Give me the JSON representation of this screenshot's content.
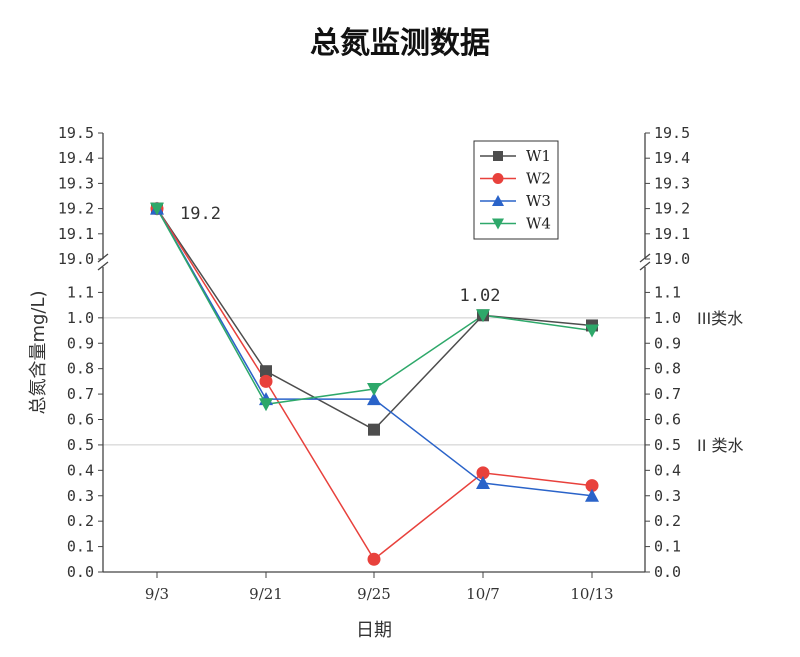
{
  "chart_data": {
    "type": "line",
    "title": "总氮监测数据",
    "xlabel": "日期",
    "ylabel": "总氮含量mg/L)",
    "categories": [
      "9/3",
      "9/21",
      "9/25",
      "10/7",
      "10/13"
    ],
    "y_axis": {
      "broken": true,
      "lower_range": [
        0.0,
        1.2
      ],
      "upper_range": [
        19.0,
        19.5
      ],
      "lower_ticks": [
        "0.0",
        "0.1",
        "0.2",
        "0.3",
        "0.4",
        "0.5",
        "0.6",
        "0.7",
        "0.8",
        "0.9",
        "1.0",
        "1.1"
      ],
      "upper_ticks": [
        "19.0",
        "19.1",
        "19.2",
        "19.3",
        "19.4",
        "19.5"
      ],
      "right_axis_mirrored": true
    },
    "series": [
      {
        "name": "W1",
        "marker": "square",
        "color": "#4d4d4d",
        "values": [
          19.2,
          0.79,
          0.56,
          1.01,
          0.97
        ]
      },
      {
        "name": "W2",
        "marker": "circle",
        "color": "#e8413c",
        "values": [
          19.2,
          0.75,
          0.05,
          0.39,
          0.34
        ]
      },
      {
        "name": "W3",
        "marker": "triangle-up",
        "color": "#2a63c9",
        "values": [
          19.2,
          0.68,
          0.68,
          0.35,
          0.3
        ]
      },
      {
        "name": "W4",
        "marker": "triangle-down",
        "color": "#2ea86a",
        "values": [
          19.2,
          0.66,
          0.72,
          1.01,
          0.95
        ]
      }
    ],
    "reference_lines": [
      {
        "y": 1.0,
        "label": "III类水",
        "color": "#cccccc"
      },
      {
        "y": 0.5,
        "label": "II 类水",
        "color": "#cccccc"
      }
    ],
    "annotations": [
      {
        "text": "19.2"
      },
      {
        "text": "1.02"
      }
    ],
    "legend_position": "top-right",
    "grid": false
  }
}
